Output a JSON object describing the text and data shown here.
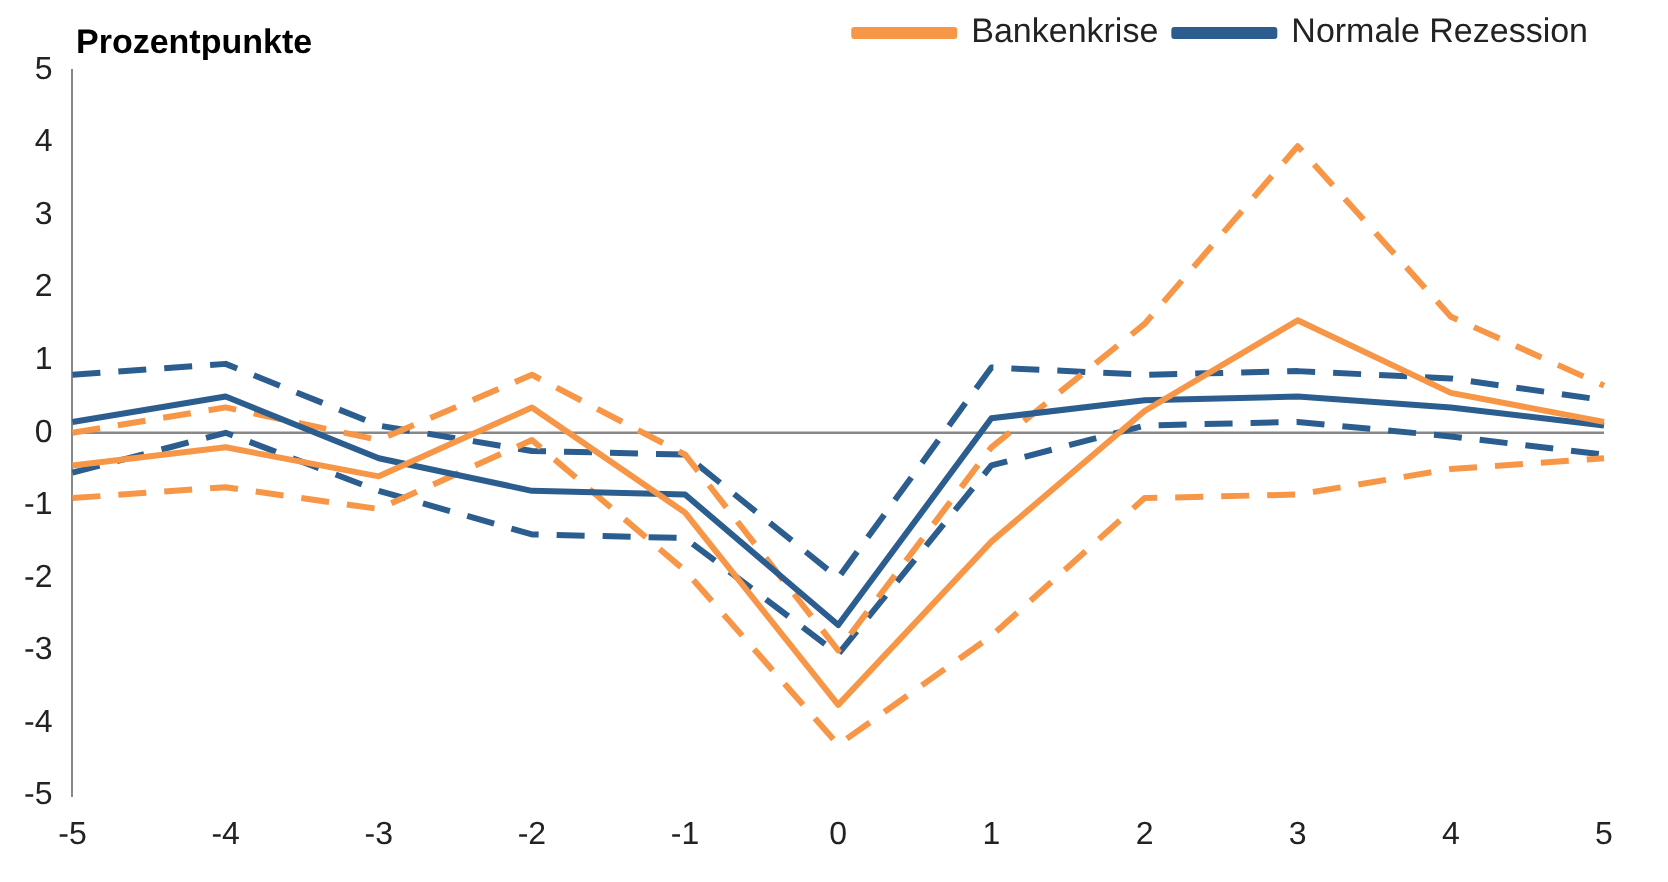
{
  "chart_data": {
    "type": "line",
    "ylabel": "Prozentpunkte",
    "categories": [
      "-5",
      "-4",
      "-3",
      "-2",
      "-1",
      "0",
      "1",
      "2",
      "3",
      "4",
      "5"
    ],
    "ylim": [
      -5,
      5
    ],
    "yticks": [
      -5,
      -4,
      -3,
      -2,
      -1,
      0,
      1,
      2,
      3,
      4,
      5
    ],
    "grid": false,
    "ref_lines": [
      {
        "axis": "y",
        "value": 0,
        "color": "#888888"
      }
    ],
    "legend": "top right",
    "marker": "none",
    "series": [
      {
        "name": "Bankenkrise",
        "color": "#f79646",
        "line_style": "solid",
        "values": [
          -0.45,
          -0.2,
          -0.6,
          0.35,
          -1.1,
          -3.75,
          -1.5,
          0.3,
          1.55,
          0.55,
          0.15
        ]
      },
      {
        "name": "Normale Rezession",
        "color": "#2c5d8f",
        "line_style": "solid",
        "values": [
          0.15,
          0.5,
          -0.35,
          -0.8,
          -0.85,
          -2.65,
          0.2,
          0.45,
          0.5,
          0.35,
          0.1
        ]
      },
      {
        "color": "#f79646",
        "line_style": "dashed",
        "values": [
          0.0,
          0.35,
          -0.1,
          0.8,
          -0.3,
          -3.0,
          -0.2,
          1.5,
          3.95,
          1.6,
          0.65
        ]
      },
      {
        "color": "#f79646",
        "line_style": "dashed",
        "values": [
          -0.9,
          -0.75,
          -1.05,
          -0.1,
          -1.9,
          -4.3,
          -2.8,
          -0.9,
          -0.85,
          -0.5,
          -0.35
        ]
      },
      {
        "color": "#2c5d8f",
        "line_style": "dashed",
        "values": [
          0.8,
          0.95,
          0.1,
          -0.25,
          -0.3,
          -2.0,
          0.9,
          0.8,
          0.85,
          0.75,
          0.45
        ]
      },
      {
        "color": "#2c5d8f",
        "line_style": "dashed",
        "values": [
          -0.55,
          0.0,
          -0.8,
          -1.4,
          -1.45,
          -3.05,
          -0.45,
          0.1,
          0.15,
          -0.05,
          -0.3
        ]
      }
    ]
  }
}
